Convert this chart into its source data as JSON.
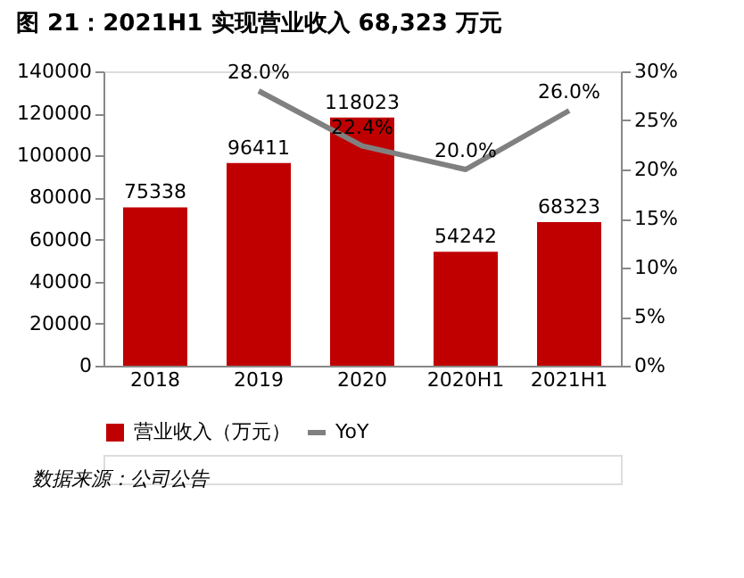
{
  "chart_data": {
    "type": "bar",
    "title": "图 21：2021H1 实现营业收入 68,323 万元",
    "categories": [
      "2018",
      "2019",
      "2020",
      "2020H1",
      "2021H1"
    ],
    "series": [
      {
        "name": "营业收入（万元）",
        "color": "#c00000",
        "values": [
          75338,
          96411,
          118023,
          54242,
          68323
        ],
        "value_labels": [
          "75338",
          "96411",
          "118023",
          "54242",
          "68323"
        ]
      },
      {
        "name": "YoY",
        "type": "line",
        "axis": "y2",
        "color": "#808080",
        "values": [
          null,
          28.0,
          22.4,
          20.0,
          26.0
        ],
        "value_labels": [
          null,
          "28.0%",
          "22.4%",
          "20.0%",
          "26.0%"
        ]
      }
    ],
    "ylim": [
      0,
      140000
    ],
    "yticks": [
      0,
      20000,
      40000,
      60000,
      80000,
      100000,
      120000,
      140000
    ],
    "y2lim": [
      0,
      30
    ],
    "y2ticks": [
      {
        "value": 0,
        "label": "0%"
      },
      {
        "value": 5,
        "label": "5%"
      },
      {
        "value": 10,
        "label": "10%"
      },
      {
        "value": 15,
        "label": "15%"
      },
      {
        "value": 20,
        "label": "20%"
      },
      {
        "value": 25,
        "label": "25%"
      },
      {
        "value": 30,
        "label": "30%"
      }
    ],
    "legend": "bottom",
    "grid": false,
    "marker": "none",
    "line_style": "solid",
    "annotations": [
      "数据来源：公司公告"
    ]
  }
}
